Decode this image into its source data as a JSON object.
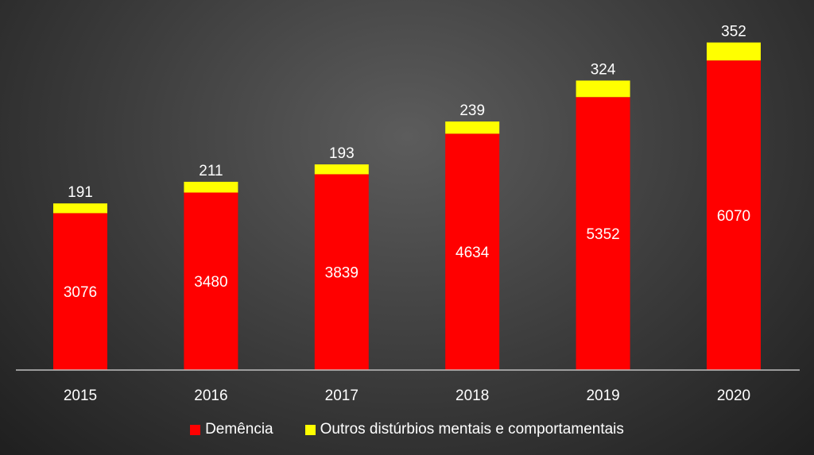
{
  "colors": {
    "primary": "#ff0000",
    "secondary": "#ffff00",
    "axis": "#bfbfbf",
    "text": "#ffffff"
  },
  "chart_data": {
    "type": "bar",
    "stacked": true,
    "categories": [
      "2015",
      "2016",
      "2017",
      "2018",
      "2019",
      "2020"
    ],
    "series": [
      {
        "name": "Demência",
        "values": [
          3076,
          3480,
          3839,
          4634,
          5352,
          6070
        ]
      },
      {
        "name": "Outros distúrbios mentais e comportamentais",
        "values": [
          191,
          211,
          193,
          239,
          324,
          352
        ]
      }
    ],
    "ylim": [
      0,
      6500
    ],
    "grid": false,
    "legend_position": "bottom",
    "data_labels": true
  }
}
